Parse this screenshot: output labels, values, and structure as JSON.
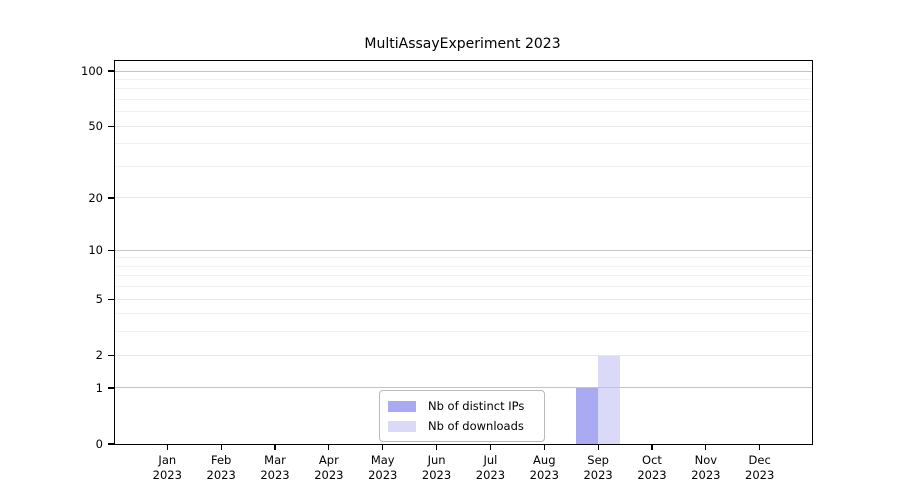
{
  "title": "MultiAssayExperiment 2023",
  "chart_data": {
    "type": "bar",
    "title": "MultiAssayExperiment 2023",
    "categories": [
      "Jan 2023",
      "Feb 2023",
      "Mar 2023",
      "Apr 2023",
      "May 2023",
      "Jun 2023",
      "Jul 2023",
      "Aug 2023",
      "Sep 2023",
      "Oct 2023",
      "Nov 2023",
      "Dec 2023"
    ],
    "series": [
      {
        "name": "Nb of distinct IPs",
        "color": "#aaaaf2",
        "values": [
          0,
          0,
          0,
          0,
          0,
          0,
          0,
          0,
          1,
          0,
          0,
          0
        ]
      },
      {
        "name": "Nb of downloads",
        "color": "#dadaf8",
        "values": [
          0,
          0,
          0,
          0,
          0,
          0,
          0,
          0,
          2,
          0,
          0,
          0
        ]
      }
    ],
    "y_scale": "log1p",
    "ylim": [
      0,
      100
    ],
    "y_ticks_labeled": [
      0,
      1,
      2,
      5,
      10,
      20,
      50,
      100
    ],
    "y_grid_major": [
      1,
      10,
      100
    ],
    "y_grid_mid": [
      2,
      5,
      20,
      50
    ],
    "y_grid_minor": [
      3,
      4,
      6,
      7,
      8,
      9,
      30,
      40,
      60,
      70,
      80,
      90
    ],
    "grid": true,
    "legend_position": "lower center"
  },
  "legend": {
    "items": [
      {
        "label": "Nb of distinct IPs",
        "color": "#aaaaf2"
      },
      {
        "label": "Nb of downloads",
        "color": "#dadaf8"
      }
    ]
  },
  "colors": {
    "axis": "#000000",
    "grid_major": "#c4c4c4",
    "grid_mid": "#e6e6e6",
    "grid_minor": "#f2f2f2",
    "background": "#ffffff"
  }
}
